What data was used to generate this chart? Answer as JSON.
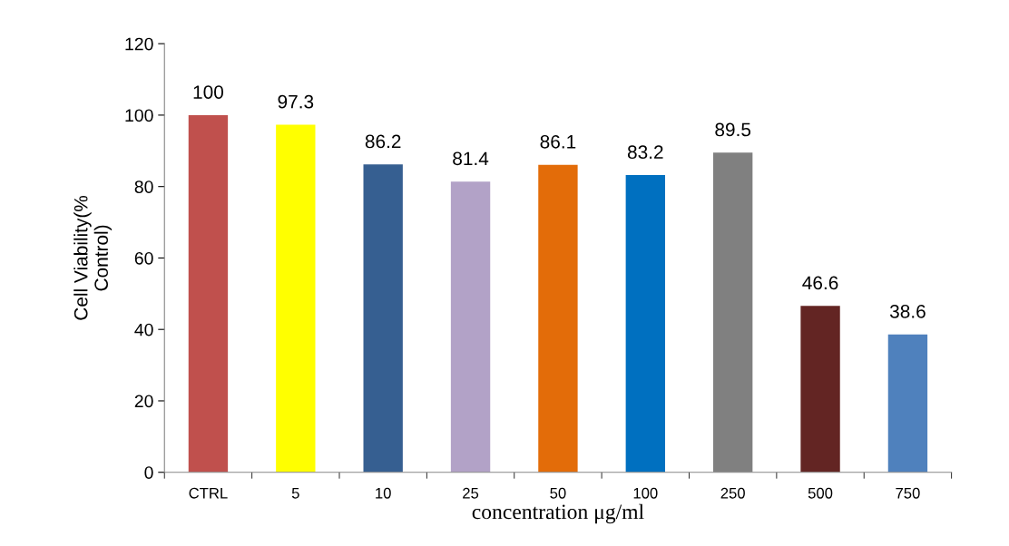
{
  "chart_data": {
    "type": "bar",
    "categories": [
      "CTRL",
      "5",
      "10",
      "25",
      "50",
      "100",
      "250",
      "500",
      "750"
    ],
    "values": [
      100,
      97.3,
      86.2,
      81.4,
      86.1,
      83.2,
      89.5,
      46.6,
      38.6
    ],
    "colors": [
      "#c0504d",
      "#ffff00",
      "#365f91",
      "#b2a2c7",
      "#e36c09",
      "#0070c0",
      "#808080",
      "#632523",
      "#4f81bd"
    ],
    "data_labels": true,
    "xlabel": "concentration μg/ml",
    "ylabel": "Cell Viability(%\nControl)",
    "ylim": [
      0,
      120
    ],
    "yticks": [
      0,
      20,
      40,
      60,
      80,
      100,
      120
    ],
    "grid": false,
    "legend": false
  }
}
